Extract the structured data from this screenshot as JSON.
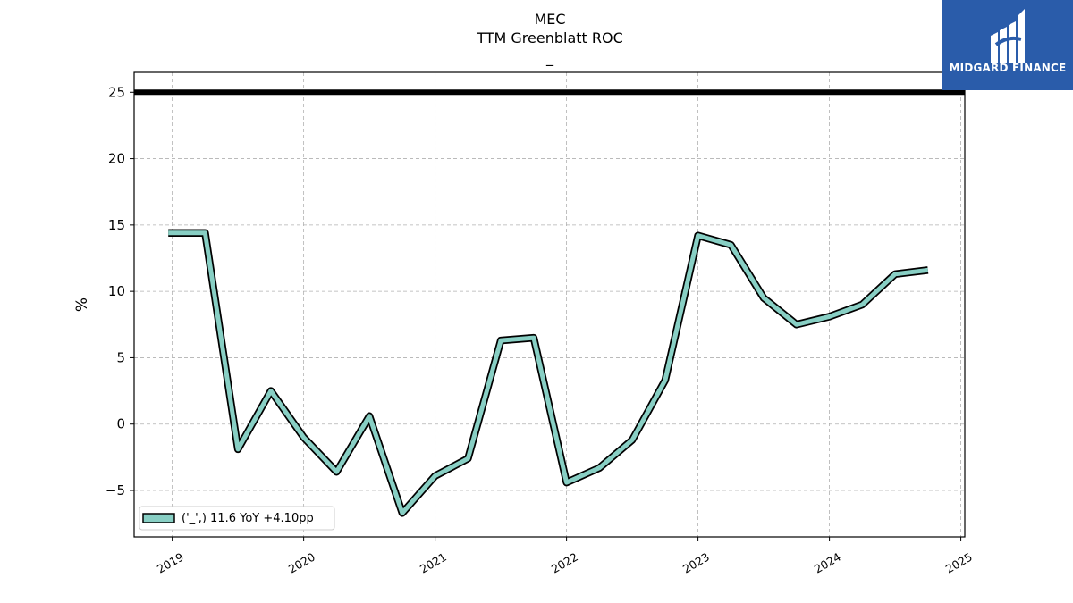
{
  "titles": {
    "line1": "MEC",
    "line2": "TTM Greenblatt ROC",
    "line3": "_"
  },
  "logo": {
    "text": "MIDGARD FINANCE",
    "background": "#2a5caa",
    "icon": "midgard-logo-icon"
  },
  "chart_data": {
    "type": "line",
    "ylabel": "%",
    "xlabel": "",
    "ylim": [
      -8.5,
      26.5
    ],
    "xlim": [
      2018.71,
      2025.03
    ],
    "grid": true,
    "yticks": [
      -5,
      0,
      5,
      10,
      15,
      20,
      25
    ],
    "ytick_labels": [
      "−5",
      "0",
      "5",
      "10",
      "15",
      "20",
      "25"
    ],
    "xticks": [
      2019,
      2020,
      2021,
      2022,
      2023,
      2024,
      2025
    ],
    "xtick_labels": [
      "2019",
      "2020",
      "2021",
      "2022",
      "2023",
      "2024",
      "2025"
    ],
    "reference_line": {
      "y": 25,
      "color": "#000000"
    },
    "series": [
      {
        "name": "('_',) 11.6 YoY +4.10pp",
        "color": "#88cfc4",
        "outline": "#000000",
        "x": [
          2018.97,
          2019.25,
          2019.5,
          2019.75,
          2020.0,
          2020.25,
          2020.5,
          2020.75,
          2021.0,
          2021.25,
          2021.5,
          2021.75,
          2022.0,
          2022.25,
          2022.5,
          2022.75,
          2023.0,
          2023.25,
          2023.5,
          2023.75,
          2024.0,
          2024.25,
          2024.5,
          2024.75
        ],
        "values": [
          14.4,
          14.4,
          -1.9,
          2.5,
          -1.0,
          -3.6,
          0.6,
          -6.7,
          -3.9,
          -2.6,
          6.3,
          6.5,
          -4.4,
          -3.3,
          -1.2,
          3.3,
          14.2,
          13.5,
          9.5,
          7.5,
          8.1,
          9.0,
          11.3,
          11.6
        ]
      }
    ],
    "legend": {
      "placement": "lower-left"
    }
  }
}
